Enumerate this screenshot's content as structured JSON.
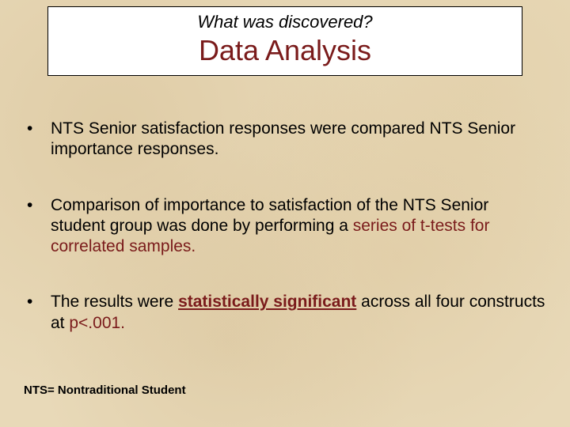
{
  "header": {
    "subtitle": "What was discovered?",
    "title": "Data Analysis"
  },
  "bullets": [
    {
      "pre": "NTS Senior satisfaction responses were compared NTS Senior importance responses.",
      "accent": "",
      "post": ""
    },
    {
      "pre": "Comparison of importance to satisfaction of the NTS Senior student group was done by performing a ",
      "accent": "series of t-tests for correlated samples.",
      "post": ""
    },
    {
      "pre": "The results were ",
      "accent_ul": "statistically significant",
      "mid": " across all four constructs at ",
      "accent2": "p<.001.",
      "post": ""
    }
  ],
  "footnote": "NTS= Nontraditional Student",
  "colors": {
    "background": "#e8d9b8",
    "accent": "#7a1b1b",
    "title_box_bg": "#ffffff",
    "title_box_border": "#000000",
    "body_text": "#000000"
  },
  "typography": {
    "subtitle_fontsize": 22,
    "title_fontsize": 36,
    "bullet_fontsize": 21,
    "footnote_fontsize": 15
  }
}
